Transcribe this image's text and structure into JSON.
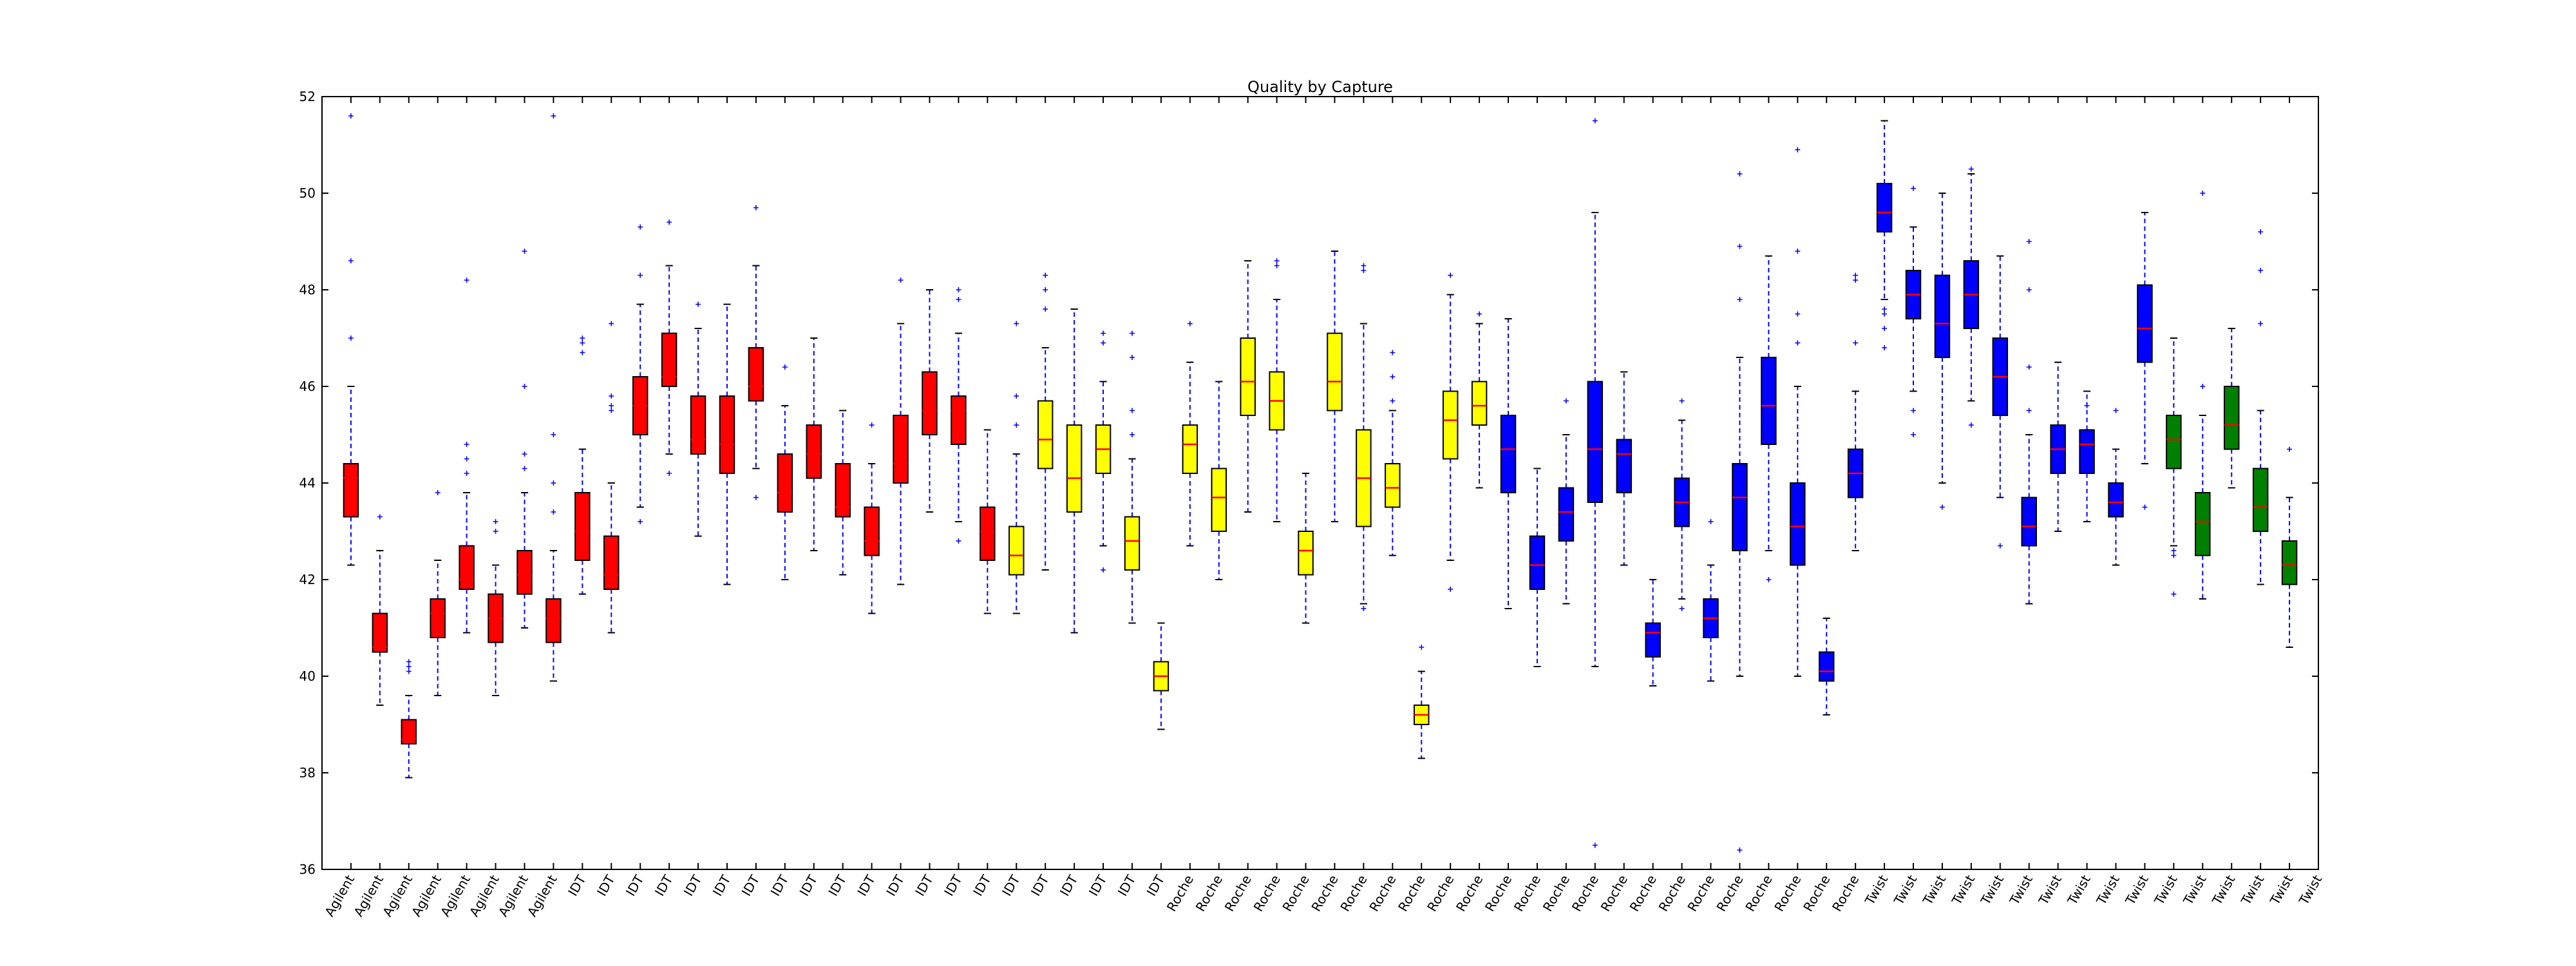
{
  "chart_data": {
    "type": "box",
    "title": "Quality by Capture",
    "xlabel": "",
    "ylabel": "",
    "ylim": [
      36,
      52
    ],
    "yticks": [
      36,
      38,
      40,
      42,
      44,
      46,
      48,
      50,
      52
    ],
    "grid": false,
    "categories": [
      "Agilent",
      "Agilent",
      "Agilent",
      "Agilent",
      "Agilent",
      "Agilent",
      "Agilent",
      "Agilent",
      "IDT",
      "IDT",
      "IDT",
      "IDT",
      "IDT",
      "IDT",
      "IDT",
      "IDT",
      "IDT",
      "IDT",
      "IDT",
      "IDT",
      "IDT",
      "IDT",
      "IDT",
      "IDT",
      "IDT",
      "IDT",
      "IDT",
      "IDT",
      "IDT",
      "Roche",
      "Roche",
      "Roche",
      "Roche",
      "Roche",
      "Roche",
      "Roche",
      "Roche",
      "Roche",
      "Roche",
      "Roche",
      "Roche",
      "Roche",
      "Roche",
      "Roche",
      "Roche",
      "Roche",
      "Roche",
      "Roche",
      "Roche",
      "Roche",
      "Roche",
      "Roche",
      "Roche",
      "Twist",
      "Twist",
      "Twist",
      "Twist",
      "Twist",
      "Twist",
      "Twist",
      "Twist",
      "Twist",
      "Twist",
      "Twist",
      "Twist",
      "Twist",
      "Twist",
      "Twist",
      "Twist"
    ],
    "box_colors": [
      "#ff0000",
      "#ff0000",
      "#ff0000",
      "#ff0000",
      "#ff0000",
      "#ff0000",
      "#ff0000",
      "#ff0000",
      "#ff0000",
      "#ff0000",
      "#ff0000",
      "#ff0000",
      "#ff0000",
      "#ff0000",
      "#ff0000",
      "#ff0000",
      "#ff0000",
      "#ff0000",
      "#ff0000",
      "#ff0000",
      "#ff0000",
      "#ff0000",
      "#ff0000",
      "#ffff00",
      "#ffff00",
      "#ffff00",
      "#ffff00",
      "#ffff00",
      "#ffff00",
      "#ffff00",
      "#ffff00",
      "#ffff00",
      "#ffff00",
      "#ffff00",
      "#ffff00",
      "#ffff00",
      "#ffff00",
      "#ffff00",
      "#ffff00",
      "#ffff00",
      "#0000ff",
      "#0000ff",
      "#0000ff",
      "#0000ff",
      "#0000ff",
      "#0000ff",
      "#0000ff",
      "#0000ff",
      "#0000ff",
      "#0000ff",
      "#0000ff",
      "#0000ff",
      "#0000ff",
      "#0000ff",
      "#0000ff",
      "#0000ff",
      "#0000ff",
      "#0000ff",
      "#0000ff",
      "#0000ff",
      "#0000ff",
      "#0000ff",
      "#0000ff",
      "#008000",
      "#008000",
      "#008000",
      "#008000",
      "#008000",
      "#008000",
      "#008000",
      "#008000",
      "#008000"
    ],
    "boxes": [
      {
        "q1": 43.3,
        "median": 44.1,
        "q3": 44.4,
        "whislo": 42.3,
        "whishi": 46.0,
        "fliers": [
          47.0,
          48.6,
          51.6
        ]
      },
      {
        "q1": 40.5,
        "median": 40.6,
        "q3": 41.3,
        "whislo": 39.4,
        "whishi": 42.6,
        "fliers": [
          43.3
        ]
      },
      {
        "q1": 38.6,
        "median": 38.7,
        "q3": 39.1,
        "whislo": 37.9,
        "whishi": 39.6,
        "fliers": [
          40.1,
          40.2,
          40.3
        ]
      },
      {
        "q1": 40.8,
        "median": 41.3,
        "q3": 41.6,
        "whislo": 39.6,
        "whishi": 42.4,
        "fliers": [
          43.8
        ]
      },
      {
        "q1": 41.8,
        "median": 42.0,
        "q3": 42.7,
        "whislo": 40.9,
        "whishi": 43.8,
        "fliers": [
          44.2,
          44.5,
          44.8,
          48.2
        ]
      },
      {
        "q1": 40.7,
        "median": 41.2,
        "q3": 41.7,
        "whislo": 39.6,
        "whishi": 42.3,
        "fliers": [
          43.0,
          43.2
        ]
      },
      {
        "q1": 41.7,
        "median": 42.1,
        "q3": 42.6,
        "whislo": 41.0,
        "whishi": 43.8,
        "fliers": [
          44.3,
          44.6,
          46.0,
          48.8
        ]
      },
      {
        "q1": 40.7,
        "median": 41.2,
        "q3": 41.6,
        "whislo": 39.9,
        "whishi": 42.6,
        "fliers": [
          43.4,
          44.0,
          45.0,
          51.6
        ]
      },
      {
        "q1": 42.4,
        "median": 43.0,
        "q3": 43.8,
        "whislo": 41.7,
        "whishi": 44.7,
        "fliers": [
          46.7,
          46.9,
          47.0
        ]
      },
      {
        "q1": 41.8,
        "median": 42.1,
        "q3": 42.9,
        "whislo": 40.9,
        "whishi": 44.0,
        "fliers": [
          45.5,
          45.6,
          45.8,
          47.3
        ]
      },
      {
        "q1": 45.0,
        "median": 45.6,
        "q3": 46.2,
        "whislo": 43.5,
        "whishi": 47.7,
        "fliers": [
          43.2,
          48.3,
          49.3
        ]
      },
      {
        "q1": 46.0,
        "median": 46.2,
        "q3": 47.1,
        "whislo": 44.6,
        "whishi": 48.5,
        "fliers": [
          44.2,
          49.4
        ]
      },
      {
        "q1": 44.6,
        "median": 44.9,
        "q3": 45.8,
        "whislo": 42.9,
        "whishi": 47.2,
        "fliers": [
          47.7
        ]
      },
      {
        "q1": 44.2,
        "median": 44.8,
        "q3": 45.8,
        "whislo": 41.9,
        "whishi": 47.7,
        "fliers": []
      },
      {
        "q1": 45.7,
        "median": 46.0,
        "q3": 46.8,
        "whislo": 44.3,
        "whishi": 48.5,
        "fliers": [
          43.7,
          49.7
        ]
      },
      {
        "q1": 43.4,
        "median": 43.8,
        "q3": 44.6,
        "whislo": 42.0,
        "whishi": 45.6,
        "fliers": [
          46.4
        ]
      },
      {
        "q1": 44.1,
        "median": 44.6,
        "q3": 45.2,
        "whislo": 42.6,
        "whishi": 47.0,
        "fliers": []
      },
      {
        "q1": 43.3,
        "median": 43.5,
        "q3": 44.4,
        "whislo": 42.1,
        "whishi": 45.5,
        "fliers": []
      },
      {
        "q1": 42.5,
        "median": 42.8,
        "q3": 43.5,
        "whislo": 41.3,
        "whishi": 44.4,
        "fliers": [
          45.2
        ]
      },
      {
        "q1": 44.0,
        "median": 44.4,
        "q3": 45.4,
        "whislo": 41.9,
        "whishi": 47.3,
        "fliers": [
          48.2
        ]
      },
      {
        "q1": 45.0,
        "median": 45.5,
        "q3": 46.3,
        "whislo": 43.4,
        "whishi": 48.0,
        "fliers": []
      },
      {
        "q1": 44.8,
        "median": 45.5,
        "q3": 45.8,
        "whislo": 43.2,
        "whishi": 47.1,
        "fliers": [
          42.8,
          47.8,
          48.0
        ]
      },
      {
        "q1": 42.4,
        "median": 43.0,
        "q3": 43.5,
        "whislo": 41.3,
        "whishi": 45.1,
        "fliers": []
      },
      {
        "q1": 42.1,
        "median": 42.5,
        "q3": 43.1,
        "whislo": 41.3,
        "whishi": 44.6,
        "fliers": [
          45.2,
          45.8,
          47.3
        ]
      },
      {
        "q1": 44.3,
        "median": 44.9,
        "q3": 45.7,
        "whislo": 42.2,
        "whishi": 46.8,
        "fliers": [
          47.6,
          48.0,
          48.3
        ]
      },
      {
        "q1": 43.4,
        "median": 44.1,
        "q3": 45.2,
        "whislo": 40.9,
        "whishi": 47.6,
        "fliers": []
      },
      {
        "q1": 44.2,
        "median": 44.7,
        "q3": 45.2,
        "whislo": 42.7,
        "whishi": 46.1,
        "fliers": [
          42.2,
          46.9,
          47.1
        ]
      },
      {
        "q1": 42.2,
        "median": 42.8,
        "q3": 43.3,
        "whislo": 41.1,
        "whishi": 44.5,
        "fliers": [
          45.0,
          45.5,
          46.6,
          47.1
        ]
      },
      {
        "q1": 39.7,
        "median": 40.0,
        "q3": 40.3,
        "whislo": 38.9,
        "whishi": 41.1,
        "fliers": []
      },
      {
        "q1": 44.2,
        "median": 44.8,
        "q3": 45.2,
        "whislo": 42.7,
        "whishi": 46.5,
        "fliers": [
          47.3
        ]
      },
      {
        "q1": 43.0,
        "median": 43.7,
        "q3": 44.3,
        "whislo": 42.0,
        "whishi": 46.1,
        "fliers": []
      },
      {
        "q1": 45.4,
        "median": 46.1,
        "q3": 47.0,
        "whislo": 43.4,
        "whishi": 48.6,
        "fliers": []
      },
      {
        "q1": 45.1,
        "median": 45.7,
        "q3": 46.3,
        "whislo": 43.2,
        "whishi": 47.8,
        "fliers": [
          48.5,
          48.6
        ]
      },
      {
        "q1": 42.1,
        "median": 42.6,
        "q3": 43.0,
        "whislo": 41.1,
        "whishi": 44.2,
        "fliers": []
      },
      {
        "q1": 45.5,
        "median": 46.1,
        "q3": 47.1,
        "whislo": 43.2,
        "whishi": 48.8,
        "fliers": []
      },
      {
        "q1": 43.1,
        "median": 44.1,
        "q3": 45.1,
        "whislo": 41.5,
        "whishi": 47.3,
        "fliers": [
          41.4,
          48.4,
          48.5
        ]
      },
      {
        "q1": 43.5,
        "median": 43.9,
        "q3": 44.4,
        "whislo": 42.5,
        "whishi": 45.5,
        "fliers": [
          45.7,
          46.2,
          46.7
        ]
      },
      {
        "q1": 39.0,
        "median": 39.2,
        "q3": 39.4,
        "whislo": 38.3,
        "whishi": 40.1,
        "fliers": [
          40.6
        ]
      },
      {
        "q1": 44.5,
        "median": 45.3,
        "q3": 45.9,
        "whislo": 42.4,
        "whishi": 47.9,
        "fliers": [
          41.8,
          48.3
        ]
      },
      {
        "q1": 45.2,
        "median": 45.6,
        "q3": 46.1,
        "whislo": 43.9,
        "whishi": 47.3,
        "fliers": [
          47.5
        ]
      },
      {
        "q1": 43.8,
        "median": 44.7,
        "q3": 45.4,
        "whislo": 41.4,
        "whishi": 47.4,
        "fliers": []
      },
      {
        "q1": 41.8,
        "median": 42.3,
        "q3": 42.9,
        "whislo": 40.2,
        "whishi": 44.3,
        "fliers": []
      },
      {
        "q1": 42.8,
        "median": 43.4,
        "q3": 43.9,
        "whislo": 41.5,
        "whishi": 45.0,
        "fliers": [
          45.7
        ]
      },
      {
        "q1": 43.6,
        "median": 44.7,
        "q3": 46.1,
        "whislo": 40.2,
        "whishi": 49.6,
        "fliers": [
          36.5,
          51.5
        ]
      },
      {
        "q1": 43.8,
        "median": 44.6,
        "q3": 44.9,
        "whislo": 42.3,
        "whishi": 46.3,
        "fliers": []
      },
      {
        "q1": 40.4,
        "median": 40.9,
        "q3": 41.1,
        "whislo": 39.8,
        "whishi": 42.0,
        "fliers": []
      },
      {
        "q1": 43.1,
        "median": 43.6,
        "q3": 44.1,
        "whislo": 41.6,
        "whishi": 45.3,
        "fliers": [
          41.4,
          45.7
        ]
      },
      {
        "q1": 40.8,
        "median": 41.2,
        "q3": 41.6,
        "whislo": 39.9,
        "whishi": 42.3,
        "fliers": [
          43.2
        ]
      },
      {
        "q1": 42.6,
        "median": 43.7,
        "q3": 44.4,
        "whislo": 40.0,
        "whishi": 46.6,
        "fliers": [
          36.4,
          47.8,
          48.9,
          50.4
        ]
      },
      {
        "q1": 44.8,
        "median": 45.6,
        "q3": 46.6,
        "whislo": 42.6,
        "whishi": 48.7,
        "fliers": [
          42.0
        ]
      },
      {
        "q1": 42.3,
        "median": 43.1,
        "q3": 44.0,
        "whislo": 40.0,
        "whishi": 46.0,
        "fliers": [
          46.9,
          47.5,
          48.8,
          50.9
        ]
      },
      {
        "q1": 39.9,
        "median": 40.1,
        "q3": 40.5,
        "whislo": 39.2,
        "whishi": 41.2,
        "fliers": []
      },
      {
        "q1": 43.7,
        "median": 44.2,
        "q3": 44.7,
        "whislo": 42.6,
        "whishi": 45.9,
        "fliers": [
          46.9,
          48.2,
          48.3
        ]
      },
      {
        "q1": 49.2,
        "median": 49.6,
        "q3": 50.2,
        "whislo": 47.8,
        "whishi": 51.5,
        "fliers": [
          46.8,
          47.2,
          47.5,
          47.6
        ]
      },
      {
        "q1": 47.4,
        "median": 47.9,
        "q3": 48.4,
        "whislo": 45.9,
        "whishi": 49.3,
        "fliers": [
          45.0,
          45.5,
          50.1
        ]
      },
      {
        "q1": 46.6,
        "median": 47.3,
        "q3": 48.3,
        "whislo": 44.0,
        "whishi": 50.0,
        "fliers": [
          43.5
        ]
      },
      {
        "q1": 47.2,
        "median": 47.9,
        "q3": 48.6,
        "whislo": 45.7,
        "whishi": 50.4,
        "fliers": [
          45.2,
          50.5
        ]
      },
      {
        "q1": 45.4,
        "median": 46.2,
        "q3": 47.0,
        "whislo": 43.7,
        "whishi": 48.7,
        "fliers": [
          42.7
        ]
      },
      {
        "q1": 42.7,
        "median": 43.1,
        "q3": 43.7,
        "whislo": 41.5,
        "whishi": 45.0,
        "fliers": [
          45.5,
          46.4,
          48.0,
          49.0
        ]
      },
      {
        "q1": 44.2,
        "median": 44.7,
        "q3": 45.2,
        "whislo": 43.0,
        "whishi": 46.5,
        "fliers": []
      },
      {
        "q1": 44.2,
        "median": 44.8,
        "q3": 45.1,
        "whislo": 43.2,
        "whishi": 45.9,
        "fliers": [
          45.6
        ]
      },
      {
        "q1": 43.3,
        "median": 43.6,
        "q3": 44.0,
        "whislo": 42.3,
        "whishi": 44.7,
        "fliers": [
          45.5
        ]
      },
      {
        "q1": 46.5,
        "median": 47.2,
        "q3": 48.1,
        "whislo": 44.4,
        "whishi": 49.6,
        "fliers": [
          43.5
        ]
      },
      {
        "q1": 44.3,
        "median": 44.9,
        "q3": 45.4,
        "whislo": 42.7,
        "whishi": 47.0,
        "fliers": [
          41.7,
          42.5,
          42.6
        ]
      },
      {
        "q1": 42.5,
        "median": 43.2,
        "q3": 43.8,
        "whislo": 41.6,
        "whishi": 45.4,
        "fliers": [
          46.0,
          50.0
        ]
      },
      {
        "q1": 44.7,
        "median": 45.2,
        "q3": 46.0,
        "whislo": 43.9,
        "whishi": 47.2,
        "fliers": []
      },
      {
        "q1": 43.0,
        "median": 43.5,
        "q3": 44.3,
        "whislo": 41.9,
        "whishi": 45.5,
        "fliers": [
          47.3,
          48.4,
          49.2
        ]
      },
      {
        "q1": 41.9,
        "median": 42.3,
        "q3": 42.8,
        "whislo": 40.6,
        "whishi": 43.7,
        "fliers": [
          44.7
        ]
      }
    ]
  }
}
